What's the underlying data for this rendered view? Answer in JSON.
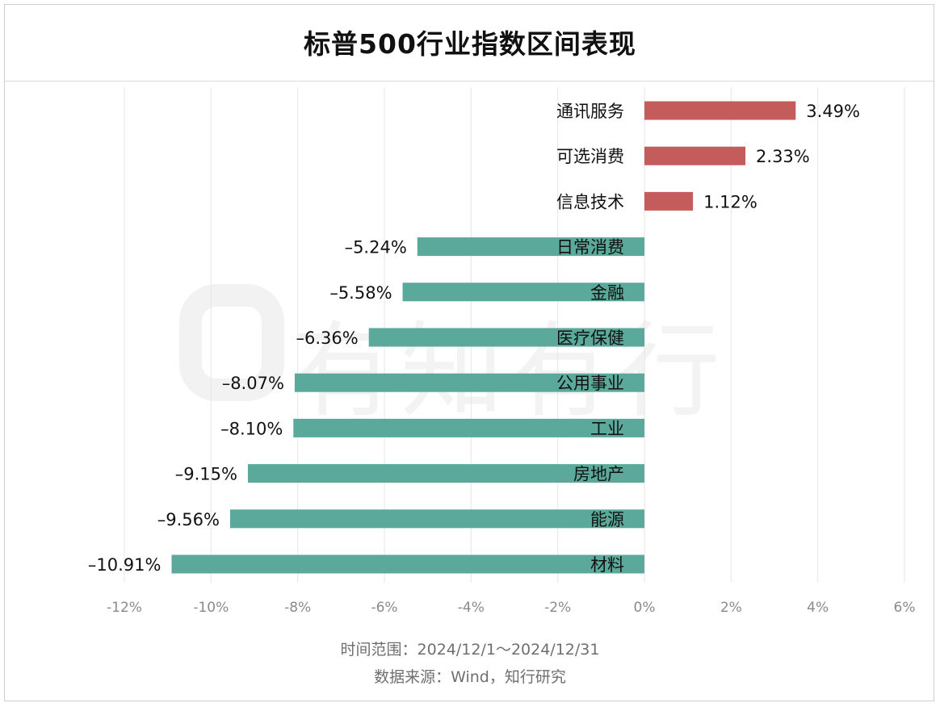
{
  "title": "标普500行业指数区间表现",
  "watermark": "有知有行",
  "source": {
    "time_range": "时间范围：2024/12/1～2024/12/31",
    "data_source": "数据来源：Wind，知行研究"
  },
  "colors": {
    "positive": "#c45c5c",
    "negative": "#5ba99a",
    "grid": "#e6e6e6",
    "tick_label": "#8a8a8a",
    "text": "#111111"
  },
  "chart_data": {
    "type": "bar",
    "orientation": "horizontal",
    "title": "标普500行业指数区间表现",
    "categories": [
      "通讯服务",
      "可选消费",
      "信息技术",
      "日常消费",
      "金融",
      "医疗保健",
      "公用事业",
      "工业",
      "房地产",
      "能源",
      "材料"
    ],
    "values": [
      3.49,
      2.33,
      1.12,
      -5.24,
      -5.58,
      -6.36,
      -8.07,
      -8.1,
      -9.15,
      -9.56,
      -10.91
    ],
    "data_labels": [
      "3.49%",
      "2.33%",
      "1.12%",
      "–5.24%",
      "–5.58%",
      "–6.36%",
      "–8.07%",
      "–8.10%",
      "–9.15%",
      "–9.56%",
      "–10.91%"
    ],
    "xlim": [
      -12,
      6
    ],
    "xticks": [
      -12,
      -10,
      -8,
      -6,
      -4,
      -2,
      0,
      2,
      4,
      6
    ],
    "xtick_labels": [
      "-12%",
      "-10%",
      "-8%",
      "-6%",
      "-4%",
      "-2%",
      "0%",
      "2%",
      "4%",
      "6%"
    ],
    "grid": "vertical",
    "legend": "none"
  }
}
